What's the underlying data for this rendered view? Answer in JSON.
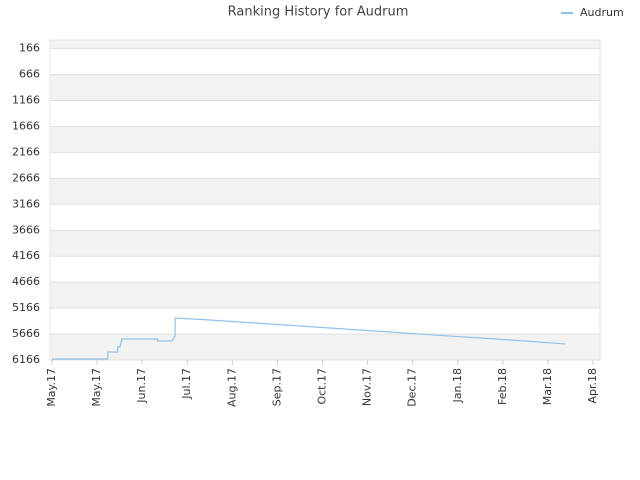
{
  "chart_data": {
    "type": "line",
    "title": "Ranking History for Audrum",
    "x": [
      0,
      1.24,
      1.24,
      1.46,
      1.46,
      1.51,
      1.55,
      2.34,
      2.34,
      2.66,
      2.73,
      2.73,
      3.5,
      4.5,
      5.5,
      6.5,
      7.5,
      8.5,
      9.5,
      10.5,
      11.38
    ],
    "series": [
      {
        "name": "Audrum",
        "color": "#8ec2ee",
        "values": [
          6147,
          6147,
          6012,
          6012,
          5915,
          5915,
          5761,
          5761,
          5800,
          5800,
          5703,
          5357,
          5395,
          5453,
          5511,
          5569,
          5627,
          5685,
          5742,
          5800,
          5857
        ]
      }
    ],
    "xlim": [
      -0.044,
      12.155
    ],
    "xticks": [
      {
        "value": 0,
        "label": "May.17"
      },
      {
        "value": 1,
        "label": "May.17"
      },
      {
        "value": 2,
        "label": "Jun.17"
      },
      {
        "value": 3,
        "label": "Jul.17"
      },
      {
        "value": 4,
        "label": "Aug.17"
      },
      {
        "value": 5,
        "label": "Sep.17"
      },
      {
        "value": 6,
        "label": "Oct.17"
      },
      {
        "value": 7,
        "label": "Nov.17"
      },
      {
        "value": 8,
        "label": "Dec.17"
      },
      {
        "value": 9,
        "label": "Jan.18"
      },
      {
        "value": 10,
        "label": "Feb.18"
      },
      {
        "value": 11,
        "label": "Mar.18"
      },
      {
        "value": 12,
        "label": "Apr.18"
      }
    ],
    "ylim": [
      6166,
      0
    ],
    "yticks": [
      166,
      666,
      1166,
      1666,
      2166,
      2666,
      3166,
      3666,
      4166,
      4666,
      5166,
      5666,
      6166
    ],
    "grid": true,
    "legend": "top-right"
  }
}
